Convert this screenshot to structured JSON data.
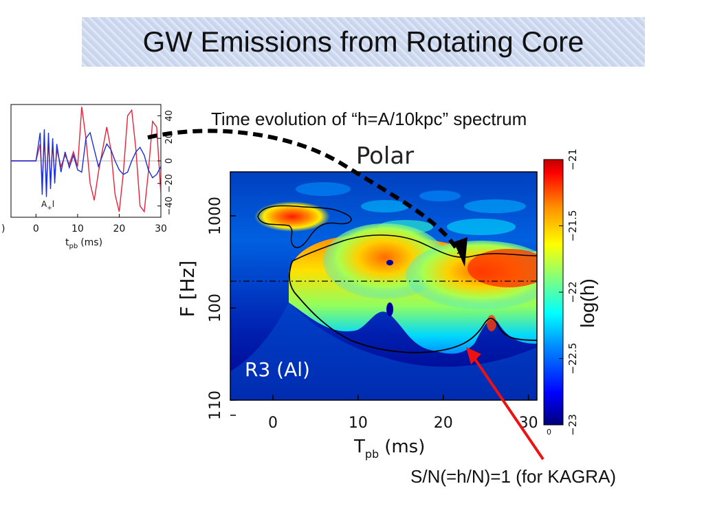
{
  "slide": {
    "title": "GW Emissions from Rotating Core",
    "caption_top": "Time evolution of “h=A/10kpc” spectrum",
    "caption_bottom": "S/N(=h/N)=1 (for KAGRA)"
  },
  "chart_data": [
    {
      "type": "heatmap",
      "title": "Polar",
      "xlabel": "T",
      "xlabel_subscript": "pb",
      "xlabel_unit": "(ms)",
      "ylabel": "F [Hz]",
      "annotation": "R3 (Al)",
      "x_ticks": [
        "0",
        "10",
        "20",
        "30"
      ],
      "y_ticks": [
        "1",
        "10",
        "100",
        "1000"
      ],
      "xlim": [
        -5,
        31
      ],
      "ylim": [
        10,
        3000
      ],
      "yscale": "log",
      "reference_line_hz": 200,
      "colorbar": {
        "label": "log(h)",
        "range": [
          -23,
          -21
        ],
        "ticks": [
          "-21",
          "-21.5",
          "-22",
          "-22.5",
          "-23"
        ],
        "extra_tick": "0",
        "colors": [
          "#00007a",
          "#0000ff",
          "#0090ff",
          "#00ffff",
          "#7fff7f",
          "#ffff00",
          "#ff9000",
          "#ff0000",
          "#c00000"
        ]
      },
      "contour_label": "S/N=1"
    },
    {
      "type": "line",
      "annotation": "A",
      "annotation_subscript": "+",
      "annotation_suffix": "l",
      "xlabel": "t",
      "xlabel_subscript": "pb",
      "xlabel_unit": "(ms)",
      "x_ticks": [
        "0",
        "10",
        "20",
        "30"
      ],
      "x_tick_left_partial": ")",
      "y_ticks_right": [
        "40",
        "20",
        "0",
        "−20",
        "−40"
      ],
      "xlim": [
        -6,
        30
      ],
      "ylim": [
        -50,
        50
      ],
      "series": [
        {
          "color": "#e8213a",
          "x": [
            -6,
            0,
            1,
            1.5,
            2,
            2.5,
            3,
            3.5,
            4,
            4.5,
            5,
            6,
            7,
            8,
            9,
            10,
            11,
            12,
            13,
            14,
            15,
            16,
            17,
            18,
            19,
            20,
            21,
            22,
            23,
            24,
            25,
            26,
            27,
            28,
            29,
            30
          ],
          "y": [
            0,
            0,
            15,
            -20,
            20,
            -22,
            18,
            -18,
            15,
            -15,
            10,
            -5,
            5,
            -3,
            8,
            -5,
            48,
            20,
            -20,
            -35,
            -10,
            10,
            30,
            10,
            -30,
            -45,
            -10,
            40,
            45,
            10,
            -40,
            -45,
            -10,
            35,
            30,
            -30
          ]
        },
        {
          "color": "#1b2fd6",
          "x": [
            -6,
            0,
            1,
            1.5,
            2,
            2.5,
            3,
            3.5,
            4,
            4.5,
            5,
            6,
            7,
            8,
            9,
            10,
            11,
            12,
            13,
            14,
            15,
            16,
            17,
            18,
            19,
            20,
            21,
            22,
            23,
            24,
            25,
            26,
            27,
            28,
            29,
            30
          ],
          "y": [
            0,
            0,
            25,
            -30,
            28,
            -32,
            25,
            -25,
            20,
            -20,
            15,
            -10,
            8,
            -6,
            5,
            -8,
            -10,
            20,
            25,
            10,
            -5,
            5,
            15,
            10,
            0,
            -8,
            -12,
            -10,
            0,
            8,
            12,
            5,
            -8,
            -15,
            -12,
            -5
          ]
        }
      ]
    }
  ]
}
